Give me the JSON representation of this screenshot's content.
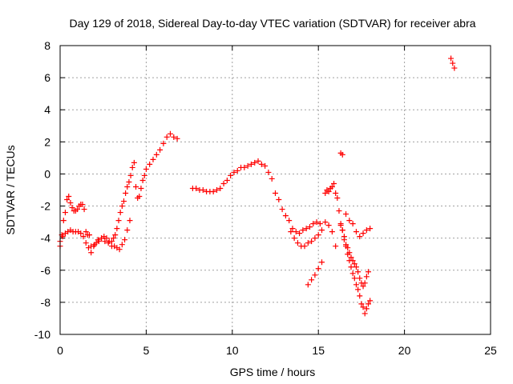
{
  "chart_data": {
    "type": "scatter",
    "title": "Day 129 of 2018, Sidereal Day-to-day VTEC variation (SDTVAR) for receiver abra",
    "xlabel": "GPS time / hours",
    "ylabel": "SDTVAR / TECUs",
    "xlim": [
      0,
      25
    ],
    "ylim": [
      -10,
      8
    ],
    "xticks": [
      0,
      5,
      10,
      15,
      20,
      25
    ],
    "yticks": [
      -10,
      -8,
      -6,
      -4,
      -2,
      0,
      2,
      4,
      6,
      8
    ],
    "grid": true,
    "marker": "+",
    "color": "#ff0000",
    "series": [
      {
        "name": "SDTVAR",
        "x": [
          0.0,
          0.1,
          0.2,
          0.3,
          0.4,
          0.5,
          0.6,
          0.7,
          0.8,
          0.9,
          1.0,
          1.1,
          1.2,
          1.3,
          1.4,
          1.5,
          1.6,
          1.7,
          0.0,
          0.15,
          0.3,
          0.45,
          0.6,
          0.75,
          0.9,
          1.05,
          1.2,
          1.35,
          1.5,
          1.65,
          1.8,
          1.95,
          2.1,
          2.25,
          2.4,
          2.55,
          2.7,
          2.85,
          3.0,
          3.15,
          3.3,
          3.45,
          3.6,
          3.75,
          3.9,
          4.05,
          1.8,
          2.0,
          2.2,
          2.4,
          2.6,
          2.8,
          3.0,
          3.1,
          3.2,
          3.3,
          3.4,
          3.5,
          3.6,
          3.7,
          3.8,
          3.9,
          4.0,
          4.1,
          4.2,
          4.3,
          4.4,
          4.5,
          4.6,
          4.7,
          4.8,
          4.9,
          5.0,
          5.2,
          5.4,
          5.6,
          5.8,
          6.0,
          6.2,
          6.4,
          6.6,
          6.8,
          7.7,
          7.9,
          8.1,
          8.3,
          8.5,
          8.7,
          8.9,
          9.1,
          9.3,
          9.5,
          9.7,
          9.9,
          10.1,
          10.3,
          10.5,
          10.7,
          10.9,
          11.1,
          11.3,
          11.5,
          11.7,
          11.9,
          12.1,
          12.3,
          12.5,
          12.7,
          12.9,
          13.1,
          13.3,
          13.5,
          13.7,
          13.9,
          14.1,
          14.3,
          14.5,
          14.7,
          14.9,
          15.1,
          14.4,
          14.6,
          14.8,
          15.0,
          15.2,
          13.4,
          13.6,
          13.8,
          14.0,
          14.2,
          14.4,
          14.6,
          14.8,
          15.0,
          15.2,
          15.4,
          15.6,
          15.8,
          16.0,
          15.4,
          15.5,
          15.6,
          15.7,
          15.8,
          15.9,
          16.0,
          16.1,
          16.2,
          16.3,
          16.4,
          16.5,
          16.6,
          16.7,
          16.8,
          16.9,
          17.0,
          17.1,
          17.2,
          17.3,
          17.4,
          17.5,
          17.6,
          17.7,
          17.8,
          17.9,
          18.0,
          16.3,
          16.4,
          16.5,
          16.6,
          16.7,
          16.8,
          16.9,
          17.0,
          17.1,
          17.2,
          17.3,
          17.4,
          17.5,
          17.6,
          17.7,
          17.8,
          17.9,
          16.6,
          16.8,
          17.0,
          17.2,
          17.4,
          17.6,
          17.8,
          18.0,
          16.3,
          16.4,
          22.7,
          22.8,
          22.9
        ],
        "y": [
          -4.5,
          -3.8,
          -2.9,
          -2.4,
          -1.6,
          -1.4,
          -1.8,
          -2.1,
          -2.3,
          -2.3,
          -2.2,
          -2.0,
          -1.9,
          -1.9,
          -2.2,
          -3.6,
          -3.8,
          -3.8,
          -4.2,
          -3.9,
          -3.7,
          -3.6,
          -3.5,
          -3.6,
          -3.6,
          -3.6,
          -3.7,
          -3.9,
          -4.3,
          -4.6,
          -4.9,
          -4.5,
          -4.3,
          -4.2,
          -4.0,
          -3.9,
          -4.0,
          -4.2,
          -4.5,
          -4.5,
          -4.6,
          -4.7,
          -4.4,
          -4.1,
          -3.5,
          -2.9,
          -4.5,
          -4.4,
          -4.1,
          -4.0,
          -4.2,
          -4.3,
          -4.2,
          -4.0,
          -3.8,
          -3.4,
          -2.9,
          -2.4,
          -2.0,
          -1.7,
          -1.2,
          -0.8,
          -0.5,
          -0.1,
          0.4,
          0.7,
          -0.8,
          -1.5,
          -1.4,
          -0.9,
          -0.4,
          -0.1,
          0.3,
          0.6,
          0.9,
          1.2,
          1.5,
          1.9,
          2.3,
          2.5,
          2.3,
          2.2,
          -0.9,
          -0.9,
          -1.0,
          -1.0,
          -1.1,
          -1.1,
          -1.1,
          -1.0,
          -0.9,
          -0.6,
          -0.4,
          -0.1,
          0.1,
          0.2,
          0.4,
          0.4,
          0.5,
          0.6,
          0.7,
          0.8,
          0.6,
          0.5,
          0.1,
          -0.3,
          -1.2,
          -1.6,
          -2.2,
          -2.6,
          -2.9,
          -3.4,
          -3.6,
          -3.7,
          -3.5,
          -3.4,
          -3.3,
          -3.1,
          -3.0,
          -3.1,
          -6.9,
          -6.6,
          -6.3,
          -5.9,
          -5.5,
          -3.6,
          -4.0,
          -4.3,
          -4.5,
          -4.5,
          -4.3,
          -4.2,
          -4.0,
          -3.8,
          -3.5,
          -3.0,
          -3.2,
          -3.6,
          -4.5,
          -1.2,
          -1.0,
          -1.1,
          -0.9,
          -0.8,
          -0.6,
          -1.2,
          -1.5,
          -2.3,
          -3.1,
          -3.5,
          -4.1,
          -4.5,
          -5.0,
          -5.4,
          -5.8,
          -6.2,
          -6.5,
          -6.9,
          -7.2,
          -7.6,
          -8.1,
          -8.3,
          -8.7,
          -8.4,
          -8.1,
          -7.9,
          -3.2,
          -3.5,
          -3.9,
          -4.4,
          -4.6,
          -4.9,
          -5.2,
          -5.4,
          -5.6,
          -5.8,
          -6.1,
          -6.5,
          -6.8,
          -7.0,
          -6.8,
          -6.4,
          -6.1,
          -2.5,
          -2.9,
          -3.1,
          -3.6,
          -3.9,
          -3.7,
          -3.5,
          -3.4,
          1.3,
          1.2,
          7.2,
          6.9,
          6.6
        ]
      }
    ]
  }
}
